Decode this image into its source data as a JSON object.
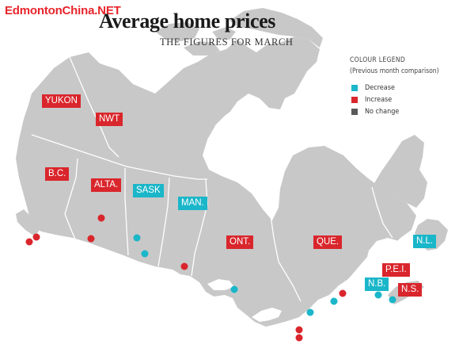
{
  "watermark": "EdmontonChina.NET",
  "title": "Average home prices",
  "subtitle": "THE FIGURES FOR MARCH",
  "legend": {
    "title": "COLOUR LEGEND",
    "subtitle": "(Previous month comparison)",
    "items": [
      {
        "label": "Decrease",
        "color": "#1ab6c9"
      },
      {
        "label": "Increase",
        "color": "#d9262c"
      },
      {
        "label": "No change",
        "color": "#5a5a5a"
      }
    ]
  },
  "colors": {
    "land": "#c8c8c8",
    "border": "#ffffff",
    "water": "#ffffff",
    "decrease": "#1ab6c9",
    "increase": "#d9262c"
  },
  "provinces": [
    {
      "key": "yukon",
      "label": "YUKON",
      "status": "increase"
    },
    {
      "key": "nwt",
      "label": "NWT",
      "status": "increase"
    },
    {
      "key": "bc",
      "label": "B.C.",
      "status": "increase"
    },
    {
      "key": "alta",
      "label": "ALTA.",
      "status": "increase"
    },
    {
      "key": "sask",
      "label": "SASK",
      "status": "decrease"
    },
    {
      "key": "man",
      "label": "MAN.",
      "status": "decrease"
    },
    {
      "key": "ont",
      "label": "ONT.",
      "status": "increase"
    },
    {
      "key": "que",
      "label": "QUE.",
      "status": "increase"
    },
    {
      "key": "nl",
      "label": "N.L.",
      "status": "decrease"
    },
    {
      "key": "pei",
      "label": "P.E.I.",
      "status": "increase"
    },
    {
      "key": "nb",
      "label": "N.B.",
      "status": "decrease"
    },
    {
      "key": "ns",
      "label": "N.S.",
      "status": "increase"
    }
  ],
  "cities": [
    {
      "province": "bc",
      "status": "increase"
    },
    {
      "province": "bc",
      "status": "increase"
    },
    {
      "province": "alta",
      "status": "increase"
    },
    {
      "province": "alta",
      "status": "increase"
    },
    {
      "province": "sask",
      "status": "decrease"
    },
    {
      "province": "sask",
      "status": "decrease"
    },
    {
      "province": "man",
      "status": "increase"
    },
    {
      "province": "ont",
      "status": "decrease"
    },
    {
      "province": "ont",
      "status": "decrease"
    },
    {
      "province": "ont",
      "status": "increase"
    },
    {
      "province": "ont",
      "status": "increase"
    },
    {
      "province": "que",
      "status": "decrease"
    },
    {
      "province": "que",
      "status": "increase"
    },
    {
      "province": "nb",
      "status": "decrease"
    },
    {
      "province": "ns",
      "status": "decrease"
    }
  ]
}
